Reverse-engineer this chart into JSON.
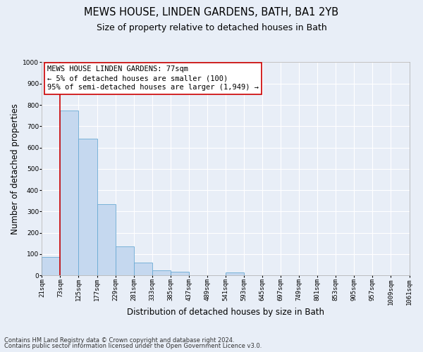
{
  "title": "MEWS HOUSE, LINDEN GARDENS, BATH, BA1 2YB",
  "subtitle": "Size of property relative to detached houses in Bath",
  "xlabel": "Distribution of detached houses by size in Bath",
  "ylabel": "Number of detached properties",
  "bin_labels": [
    "21sqm",
    "73sqm",
    "125sqm",
    "177sqm",
    "229sqm",
    "281sqm",
    "333sqm",
    "385sqm",
    "437sqm",
    "489sqm",
    "541sqm",
    "593sqm",
    "645sqm",
    "697sqm",
    "749sqm",
    "801sqm",
    "853sqm",
    "905sqm",
    "957sqm",
    "1009sqm",
    "1061sqm"
  ],
  "bar_heights": [
    85,
    775,
    640,
    335,
    135,
    60,
    22,
    16,
    0,
    0,
    12,
    0,
    0,
    0,
    0,
    0,
    0,
    0,
    0,
    0
  ],
  "bar_color": "#c5d8ef",
  "bar_edge_color": "#6aaad4",
  "ylim": [
    0,
    1000
  ],
  "yticks": [
    0,
    100,
    200,
    300,
    400,
    500,
    600,
    700,
    800,
    900,
    1000
  ],
  "vline_x": 1,
  "vline_color": "#cc0000",
  "annotation_box_text": "MEWS HOUSE LINDEN GARDENS: 77sqm\n← 5% of detached houses are smaller (100)\n95% of semi-detached houses are larger (1,949) →",
  "footer_line1": "Contains HM Land Registry data © Crown copyright and database right 2024.",
  "footer_line2": "Contains public sector information licensed under the Open Government Licence v3.0.",
  "background_color": "#e8eef7",
  "grid_color": "#ffffff",
  "title_fontsize": 10.5,
  "subtitle_fontsize": 9,
  "axis_label_fontsize": 8.5,
  "tick_fontsize": 6.5,
  "annotation_fontsize": 7.5,
  "footer_fontsize": 6
}
